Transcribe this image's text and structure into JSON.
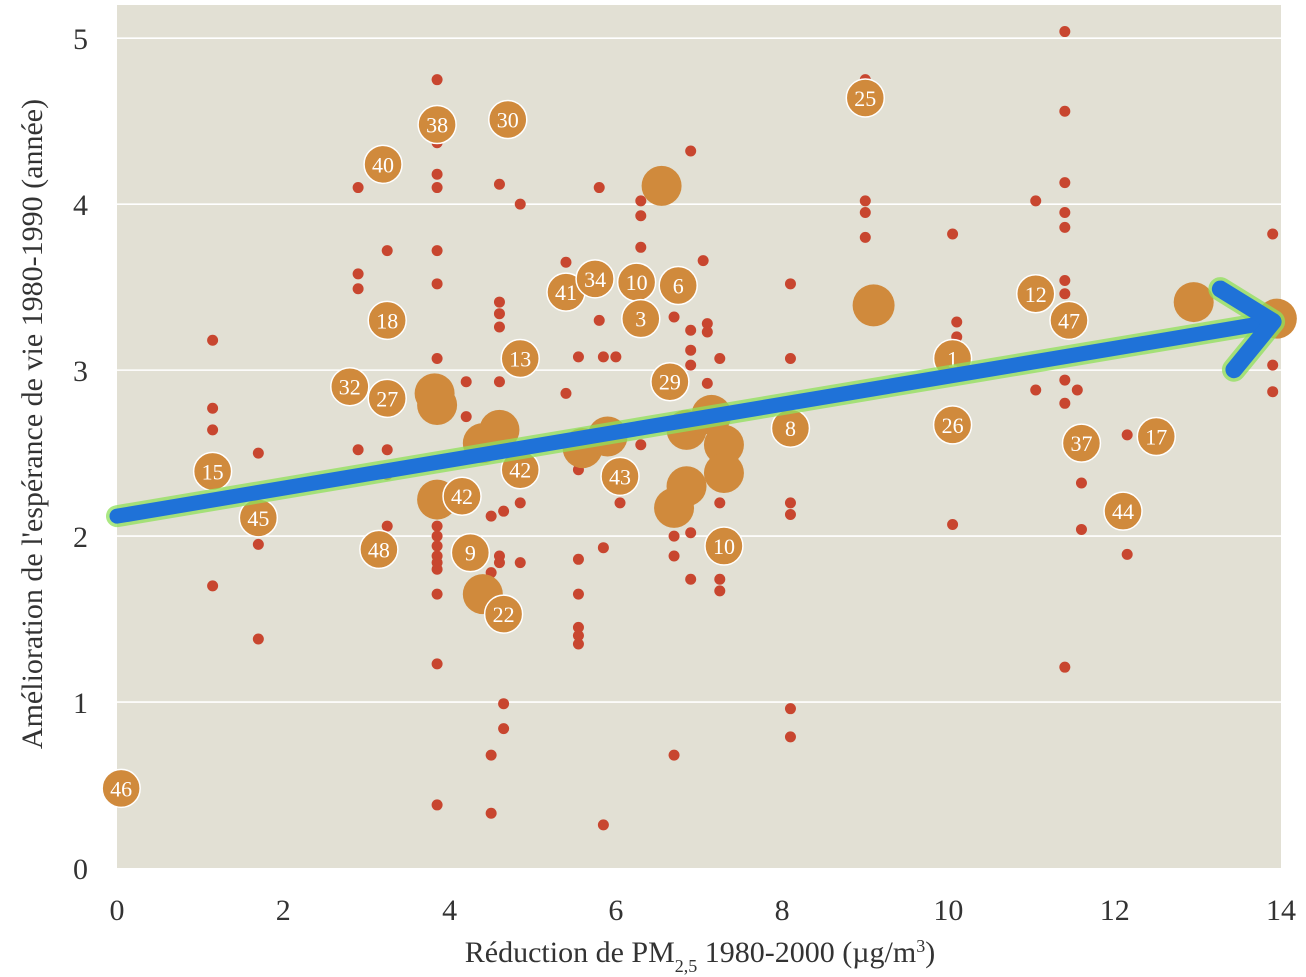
{
  "chart_data": {
    "type": "scatter",
    "xlabel": "Réduction de PM",
    "xlabel_sub": "2,5",
    "xlabel_tail": " 1980-2000 (µg/m",
    "xlabel_sup": "3",
    "xlabel_end": ")",
    "ylabel": "Amélioration de l'espérance de vie 1980-1990 (année)",
    "xlim": [
      0,
      14
    ],
    "ylim": [
      0,
      5.2
    ],
    "xticks": [
      "0",
      "2",
      "4",
      "6",
      "8",
      "10",
      "12",
      "14"
    ],
    "yticks": [
      "0",
      "1",
      "2",
      "3",
      "4",
      "5"
    ],
    "grid": "horizontal",
    "colors": {
      "background": "#e2e0d4",
      "grid": "#ffffff",
      "county": "#c8462f",
      "metro": "#d08a3c",
      "trend": "#1f72d8",
      "trend_glow": "#8fe05a"
    },
    "trend": {
      "x": [
        0,
        14
      ],
      "y": [
        2.12,
        3.3
      ]
    },
    "counties": [
      [
        1.15,
        3.18
      ],
      [
        1.15,
        2.77
      ],
      [
        1.15,
        2.64
      ],
      [
        1.15,
        1.7
      ],
      [
        1.7,
        2.5
      ],
      [
        1.7,
        1.95
      ],
      [
        1.7,
        1.38
      ],
      [
        2.9,
        4.1
      ],
      [
        2.9,
        3.58
      ],
      [
        2.9,
        3.49
      ],
      [
        2.9,
        2.52
      ],
      [
        3.25,
        3.72
      ],
      [
        3.25,
        2.52
      ],
      [
        3.25,
        2.37
      ],
      [
        3.25,
        2.06
      ],
      [
        3.85,
        4.75
      ],
      [
        3.85,
        4.37
      ],
      [
        3.85,
        4.18
      ],
      [
        3.85,
        4.1
      ],
      [
        3.85,
        3.72
      ],
      [
        3.85,
        3.52
      ],
      [
        3.85,
        3.07
      ],
      [
        3.85,
        2.92
      ],
      [
        3.85,
        2.06
      ],
      [
        3.85,
        2.0
      ],
      [
        3.85,
        1.94
      ],
      [
        3.85,
        1.88
      ],
      [
        3.85,
        1.84
      ],
      [
        3.85,
        1.8
      ],
      [
        3.85,
        1.65
      ],
      [
        3.85,
        1.23
      ],
      [
        3.85,
        0.38
      ],
      [
        4.2,
        2.93
      ],
      [
        4.2,
        2.72
      ],
      [
        4.5,
        2.12
      ],
      [
        4.5,
        1.78
      ],
      [
        4.5,
        0.68
      ],
      [
        4.5,
        0.33
      ],
      [
        4.6,
        4.12
      ],
      [
        4.6,
        3.41
      ],
      [
        4.6,
        3.34
      ],
      [
        4.6,
        3.26
      ],
      [
        4.6,
        2.93
      ],
      [
        4.6,
        1.84
      ],
      [
        4.6,
        1.88
      ],
      [
        4.65,
        2.15
      ],
      [
        4.65,
        0.99
      ],
      [
        4.65,
        0.84
      ],
      [
        4.85,
        4.0
      ],
      [
        4.85,
        2.2
      ],
      [
        4.85,
        1.84
      ],
      [
        5.4,
        3.65
      ],
      [
        5.4,
        2.86
      ],
      [
        5.55,
        3.08
      ],
      [
        5.55,
        2.4
      ],
      [
        5.55,
        1.86
      ],
      [
        5.55,
        1.65
      ],
      [
        5.55,
        1.45
      ],
      [
        5.55,
        1.4
      ],
      [
        5.55,
        1.35
      ],
      [
        5.8,
        4.1
      ],
      [
        5.8,
        3.3
      ],
      [
        5.85,
        3.08
      ],
      [
        5.85,
        1.93
      ],
      [
        5.85,
        0.26
      ],
      [
        6.0,
        3.08
      ],
      [
        6.05,
        2.2
      ],
      [
        6.3,
        4.02
      ],
      [
        6.3,
        3.93
      ],
      [
        6.3,
        3.74
      ],
      [
        6.3,
        2.55
      ],
      [
        6.7,
        3.32
      ],
      [
        6.7,
        2.0
      ],
      [
        6.7,
        1.88
      ],
      [
        6.7,
        0.68
      ],
      [
        6.9,
        4.32
      ],
      [
        6.9,
        3.24
      ],
      [
        6.9,
        3.12
      ],
      [
        6.9,
        3.03
      ],
      [
        6.9,
        2.02
      ],
      [
        6.9,
        1.74
      ],
      [
        7.05,
        3.66
      ],
      [
        7.1,
        3.28
      ],
      [
        7.1,
        3.23
      ],
      [
        7.1,
        2.92
      ],
      [
        7.25,
        3.07
      ],
      [
        7.25,
        2.2
      ],
      [
        7.25,
        1.74
      ],
      [
        7.25,
        1.67
      ],
      [
        8.1,
        3.52
      ],
      [
        8.1,
        3.07
      ],
      [
        8.1,
        2.2
      ],
      [
        8.1,
        2.13
      ],
      [
        8.1,
        0.96
      ],
      [
        8.1,
        0.79
      ],
      [
        9.0,
        4.75
      ],
      [
        9.0,
        4.02
      ],
      [
        9.0,
        3.95
      ],
      [
        9.0,
        3.8
      ],
      [
        10.05,
        3.82
      ],
      [
        10.05,
        2.07
      ],
      [
        10.1,
        3.29
      ],
      [
        10.1,
        3.2
      ],
      [
        11.05,
        4.02
      ],
      [
        11.05,
        2.88
      ],
      [
        11.4,
        5.04
      ],
      [
        11.4,
        4.56
      ],
      [
        11.4,
        4.13
      ],
      [
        11.4,
        3.95
      ],
      [
        11.4,
        3.86
      ],
      [
        11.4,
        3.54
      ],
      [
        11.4,
        3.46
      ],
      [
        11.4,
        2.94
      ],
      [
        11.4,
        2.8
      ],
      [
        11.4,
        1.21
      ],
      [
        11.55,
        2.88
      ],
      [
        11.6,
        2.32
      ],
      [
        11.6,
        2.04
      ],
      [
        12.15,
        2.61
      ],
      [
        12.15,
        1.89
      ],
      [
        13.9,
        3.82
      ],
      [
        13.9,
        3.03
      ],
      [
        13.9,
        2.87
      ]
    ],
    "metros": [
      {
        "x": 0.05,
        "y": 0.48,
        "r": 19,
        "label": "46"
      },
      {
        "x": 1.15,
        "y": 2.39,
        "r": 19,
        "label": "15"
      },
      {
        "x": 1.7,
        "y": 2.11,
        "r": 19,
        "label": "45"
      },
      {
        "x": 2.8,
        "y": 2.9,
        "r": 19,
        "label": "32"
      },
      {
        "x": 3.15,
        "y": 1.92,
        "r": 19,
        "label": "48"
      },
      {
        "x": 3.2,
        "y": 4.24,
        "r": 19,
        "label": "40"
      },
      {
        "x": 3.25,
        "y": 3.3,
        "r": 19,
        "label": "18"
      },
      {
        "x": 3.25,
        "y": 2.83,
        "r": 19,
        "label": "27"
      },
      {
        "x": 3.82,
        "y": 2.86,
        "r": 20,
        "label": ""
      },
      {
        "x": 3.85,
        "y": 4.48,
        "r": 19,
        "label": "38"
      },
      {
        "x": 3.85,
        "y": 2.79,
        "r": 20,
        "label": ""
      },
      {
        "x": 3.85,
        "y": 2.22,
        "r": 20,
        "label": ""
      },
      {
        "x": 4.15,
        "y": 2.24,
        "r": 19,
        "label": "42"
      },
      {
        "x": 4.25,
        "y": 1.9,
        "r": 19,
        "label": "9"
      },
      {
        "x": 4.4,
        "y": 2.56,
        "r": 20,
        "label": ""
      },
      {
        "x": 4.4,
        "y": 1.65,
        "r": 20,
        "label": ""
      },
      {
        "x": 4.6,
        "y": 2.64,
        "r": 20,
        "label": ""
      },
      {
        "x": 4.65,
        "y": 1.53,
        "r": 19,
        "label": "22"
      },
      {
        "x": 4.7,
        "y": 4.51,
        "r": 19,
        "label": "30"
      },
      {
        "x": 4.85,
        "y": 3.07,
        "r": 19,
        "label": "13"
      },
      {
        "x": 4.85,
        "y": 2.4,
        "r": 19,
        "label": "42"
      },
      {
        "x": 5.4,
        "y": 3.47,
        "r": 19,
        "label": "41"
      },
      {
        "x": 5.6,
        "y": 2.53,
        "r": 20,
        "label": ""
      },
      {
        "x": 5.75,
        "y": 3.55,
        "r": 19,
        "label": "34"
      },
      {
        "x": 5.9,
        "y": 2.6,
        "r": 20,
        "label": ""
      },
      {
        "x": 6.05,
        "y": 2.36,
        "r": 19,
        "label": "43"
      },
      {
        "x": 6.25,
        "y": 3.53,
        "r": 19,
        "label": "10"
      },
      {
        "x": 6.3,
        "y": 3.31,
        "r": 19,
        "label": "3"
      },
      {
        "x": 6.55,
        "y": 4.11,
        "r": 20,
        "label": ""
      },
      {
        "x": 6.65,
        "y": 2.93,
        "r": 19,
        "label": "29"
      },
      {
        "x": 6.7,
        "y": 2.17,
        "r": 20,
        "label": ""
      },
      {
        "x": 6.75,
        "y": 3.51,
        "r": 19,
        "label": "6"
      },
      {
        "x": 6.85,
        "y": 2.64,
        "r": 20,
        "label": ""
      },
      {
        "x": 6.85,
        "y": 2.3,
        "r": 20,
        "label": ""
      },
      {
        "x": 7.15,
        "y": 2.73,
        "r": 20,
        "label": ""
      },
      {
        "x": 7.3,
        "y": 2.55,
        "r": 20,
        "label": ""
      },
      {
        "x": 7.3,
        "y": 2.38,
        "r": 20,
        "label": ""
      },
      {
        "x": 7.3,
        "y": 1.94,
        "r": 19,
        "label": "10"
      },
      {
        "x": 8.1,
        "y": 2.65,
        "r": 19,
        "label": "8"
      },
      {
        "x": 9.0,
        "y": 4.64,
        "r": 19,
        "label": "25"
      },
      {
        "x": 9.1,
        "y": 3.39,
        "r": 21,
        "label": ""
      },
      {
        "x": 10.05,
        "y": 3.07,
        "r": 19,
        "label": "1"
      },
      {
        "x": 10.05,
        "y": 2.67,
        "r": 19,
        "label": "26"
      },
      {
        "x": 11.05,
        "y": 3.46,
        "r": 19,
        "label": "12"
      },
      {
        "x": 11.45,
        "y": 3.3,
        "r": 19,
        "label": "47"
      },
      {
        "x": 11.6,
        "y": 2.56,
        "r": 19,
        "label": "37"
      },
      {
        "x": 12.1,
        "y": 2.15,
        "r": 19,
        "label": "44"
      },
      {
        "x": 12.5,
        "y": 2.6,
        "r": 19,
        "label": "17"
      },
      {
        "x": 12.95,
        "y": 3.41,
        "r": 20,
        "label": ""
      },
      {
        "x": 13.95,
        "y": 3.31,
        "r": 20,
        "label": ""
      }
    ]
  }
}
